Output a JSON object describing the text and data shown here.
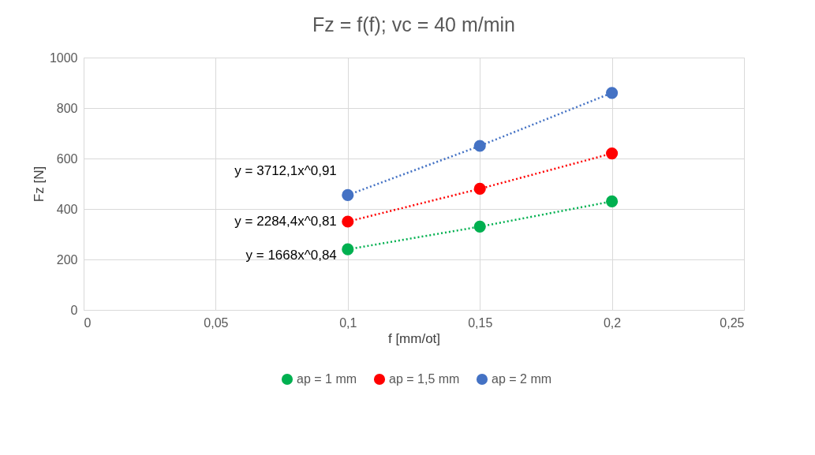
{
  "chart_data": {
    "type": "scatter",
    "title": "Fz = f(f); vc = 40 m/min",
    "xlabel": "f [mm/ot]",
    "ylabel": "Fz [N]",
    "xlim": [
      0,
      0.25
    ],
    "xticks": [
      0,
      {
        "value": 0.05,
        "label": "0,05"
      },
      {
        "value": 0.1,
        "label": "0,1"
      },
      {
        "value": 0.15,
        "label": "0,15"
      },
      {
        "value": 0.2,
        "label": "0,2"
      },
      {
        "value": 0.25,
        "label": "0,25"
      }
    ],
    "ylim": [
      0,
      1000
    ],
    "yticks": [
      0,
      200,
      400,
      600,
      800,
      1000
    ],
    "grid": true,
    "legend": "bottom",
    "series": [
      {
        "name": "ap = 1 mm",
        "color": "#00b050",
        "x": [
          0.1,
          0.15,
          0.2
        ],
        "values": [
          240,
          330,
          430
        ]
      },
      {
        "name": "ap = 1,5 mm",
        "color": "#ff0000",
        "x": [
          0.1,
          0.15,
          0.2
        ],
        "values": [
          350,
          480,
          620
        ]
      },
      {
        "name": "ap = 2 mm",
        "color": "#4472c4",
        "x": [
          0.1,
          0.15,
          0.2
        ],
        "values": [
          455,
          650,
          860
        ]
      },
      {
        "type": "line",
        "line_style": "dotted",
        "color": "#00b050",
        "x": [
          0.1,
          0.15,
          0.2
        ],
        "values": [
          240,
          330,
          430
        ]
      },
      {
        "type": "line",
        "line_style": "dotted",
        "color": "#ff0000",
        "x": [
          0.1,
          0.15,
          0.2
        ],
        "values": [
          350,
          480,
          620
        ]
      },
      {
        "type": "line",
        "line_style": "dotted",
        "color": "#4472c4",
        "x": [
          0.1,
          0.15,
          0.2
        ],
        "values": [
          455,
          650,
          860
        ]
      }
    ],
    "annotations": [
      "y = 1668x^0,84",
      "y = 2284,4x^0,81",
      "y = 3712,1x^0,91"
    ]
  }
}
